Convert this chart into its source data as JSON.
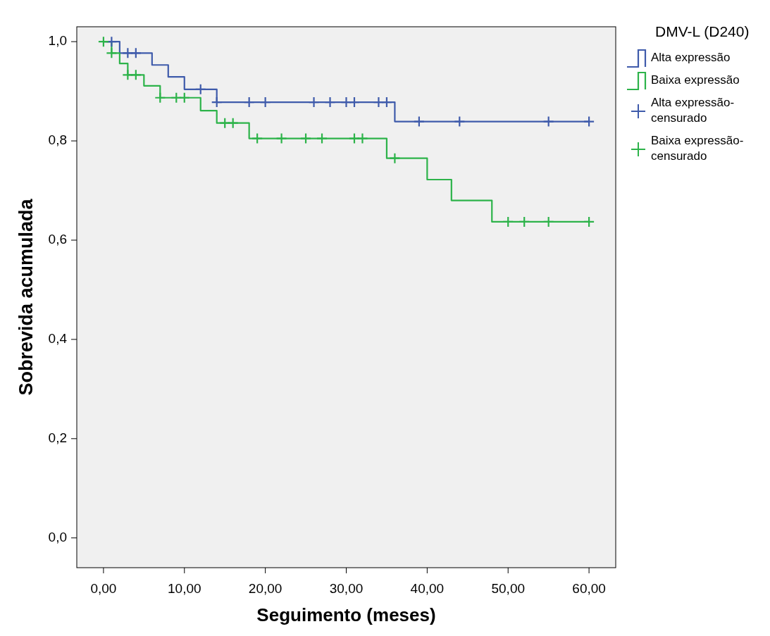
{
  "chart_data": {
    "type": "step",
    "xlabel": "Seguimento (meses)",
    "ylabel": "Sobrevida acumulada",
    "legend_title": "DMV-L (D240)",
    "legend": "right",
    "grid": false,
    "xlim": [
      -3.3,
      63.3
    ],
    "ylim": [
      -0.06,
      1.03
    ],
    "xticks": [
      {
        "value": 0,
        "label": "0,00"
      },
      {
        "value": 10,
        "label": "10,00"
      },
      {
        "value": 20,
        "label": "20,00"
      },
      {
        "value": 30,
        "label": "30,00"
      },
      {
        "value": 40,
        "label": "40,00"
      },
      {
        "value": 50,
        "label": "50,00"
      },
      {
        "value": 60,
        "label": "60,00"
      }
    ],
    "yticks": [
      {
        "value": 0,
        "label": "0,0"
      },
      {
        "value": 0.2,
        "label": "0,2"
      },
      {
        "value": 0.4,
        "label": "0,4"
      },
      {
        "value": 0.6,
        "label": "0,6"
      },
      {
        "value": 0.8,
        "label": "0,8"
      },
      {
        "value": 1,
        "label": "1,0"
      }
    ],
    "series": [
      {
        "name": "Alta expressão",
        "type": "step",
        "color": "#3f5bab",
        "marker": "none",
        "x": [
          0,
          2,
          6,
          8,
          10,
          14,
          36,
          60
        ],
        "values": [
          1,
          0.977,
          0.953,
          0.929,
          0.904,
          0.878,
          0.839,
          0.839
        ]
      },
      {
        "name": "Baixa expressão",
        "type": "step",
        "color": "#2db34a",
        "marker": "none",
        "x": [
          0,
          1,
          2,
          3,
          5,
          7,
          12,
          14,
          18,
          35,
          40,
          43,
          48,
          60
        ],
        "values": [
          1,
          0.977,
          0.956,
          0.933,
          0.911,
          0.887,
          0.861,
          0.836,
          0.805,
          0.765,
          0.722,
          0.68,
          0.637,
          0.637
        ]
      },
      {
        "name": "Alta expressão-censurado",
        "type": "scatter",
        "color": "#3f5bab",
        "marker": "cross",
        "x": [
          1,
          3,
          4,
          12,
          14,
          18,
          20,
          26,
          28,
          30,
          31,
          34,
          35,
          39,
          44,
          55,
          60
        ],
        "values": [
          1,
          0.977,
          0.977,
          0.904,
          0.878,
          0.878,
          0.878,
          0.878,
          0.878,
          0.878,
          0.878,
          0.878,
          0.878,
          0.839,
          0.839,
          0.839,
          0.839
        ]
      },
      {
        "name": "Baixa expressão-censurado",
        "type": "scatter",
        "color": "#2db34a",
        "marker": "cross",
        "x": [
          0,
          1,
          3,
          4,
          7,
          9,
          10,
          15,
          16,
          19,
          22,
          25,
          27,
          31,
          32,
          36,
          50,
          52,
          55,
          60
        ],
        "values": [
          1,
          0.977,
          0.933,
          0.933,
          0.887,
          0.887,
          0.887,
          0.836,
          0.836,
          0.805,
          0.805,
          0.805,
          0.805,
          0.805,
          0.805,
          0.765,
          0.637,
          0.637,
          0.637,
          0.637
        ]
      }
    ]
  }
}
